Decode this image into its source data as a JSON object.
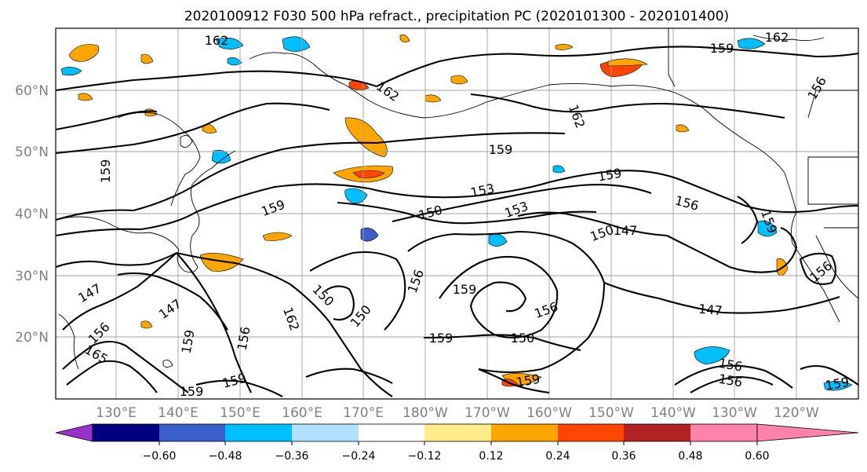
{
  "title": "2020100912 F030 500 hPa refract., precipitation PC (2020101300 - 2020101400)",
  "lat_labels": [
    "60°N",
    "50°N",
    "40°N",
    "30°N",
    "20°N"
  ],
  "lon_labels": [
    "130°E",
    "140°E",
    "150°E",
    "160°E",
    "170°E",
    "180°W",
    "170°W",
    "160°W",
    "150°W",
    "140°W",
    "130°W",
    "120°W"
  ],
  "colorbar": {
    "colors": [
      "#9932cc",
      "#000080",
      "#3a5fcd",
      "#00bfff",
      "#b0e2ff",
      "#ffffff",
      "#ffeb8a",
      "#ffa500",
      "#ff4500",
      "#b22222",
      "#ff82ab"
    ],
    "tick_labels": [
      "−0.60",
      "−0.48",
      "−0.36",
      "−0.24",
      "−0.12",
      "0.12",
      "0.24",
      "0.36",
      "0.48",
      "0.60"
    ]
  },
  "contour_labels": [
    "162",
    "159",
    "162",
    "162",
    "159",
    "156",
    "162",
    "159",
    "153",
    "150",
    "153",
    "159",
    "156",
    "150",
    "147",
    "159",
    "159",
    "147",
    "147",
    "162",
    "156",
    "159",
    "150",
    "156",
    "159",
    "150",
    "159",
    "147",
    "156",
    "165",
    "159",
    "159",
    "159",
    "156",
    "156",
    "159",
    "156",
    "150",
    "156"
  ]
}
